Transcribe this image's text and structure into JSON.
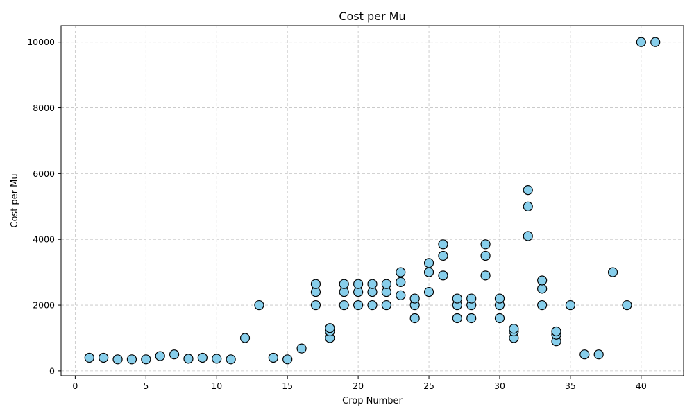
{
  "chart_data": {
    "type": "scatter",
    "title": "Cost per Mu",
    "xlabel": "Crop Number",
    "ylabel": "Cost per Mu",
    "xlim": [
      -1,
      43
    ],
    "ylim": [
      -150,
      10500
    ],
    "xticks": [
      0,
      5,
      10,
      15,
      20,
      25,
      30,
      35,
      40
    ],
    "yticks": [
      0,
      2000,
      4000,
      6000,
      8000,
      10000
    ],
    "grid": true,
    "marker_color": "#87ceeb",
    "marker_edge_color": "#000000",
    "points": [
      [
        1,
        400
      ],
      [
        2,
        400
      ],
      [
        3,
        350
      ],
      [
        4,
        350
      ],
      [
        5,
        350
      ],
      [
        6,
        450
      ],
      [
        7,
        500
      ],
      [
        8,
        370
      ],
      [
        9,
        400
      ],
      [
        10,
        370
      ],
      [
        11,
        350
      ],
      [
        12,
        1000
      ],
      [
        13,
        2000
      ],
      [
        14,
        400
      ],
      [
        15,
        350
      ],
      [
        16,
        680
      ],
      [
        17,
        2000
      ],
      [
        17,
        2400
      ],
      [
        17,
        2640
      ],
      [
        18,
        1000
      ],
      [
        18,
        1200
      ],
      [
        18,
        1300
      ],
      [
        19,
        2000
      ],
      [
        19,
        2400
      ],
      [
        19,
        2640
      ],
      [
        20,
        2000
      ],
      [
        20,
        2400
      ],
      [
        20,
        2640
      ],
      [
        21,
        2000
      ],
      [
        21,
        2400
      ],
      [
        21,
        2640
      ],
      [
        22,
        2000
      ],
      [
        22,
        2400
      ],
      [
        22,
        2640
      ],
      [
        23,
        2300
      ],
      [
        23,
        2700
      ],
      [
        23,
        3000
      ],
      [
        24,
        1600
      ],
      [
        24,
        2000
      ],
      [
        24,
        2200
      ],
      [
        25,
        2400
      ],
      [
        25,
        3000
      ],
      [
        25,
        3280
      ],
      [
        26,
        2900
      ],
      [
        26,
        3500
      ],
      [
        26,
        3850
      ],
      [
        27,
        1600
      ],
      [
        27,
        2000
      ],
      [
        27,
        2200
      ],
      [
        28,
        1600
      ],
      [
        28,
        2000
      ],
      [
        28,
        2200
      ],
      [
        29,
        2900
      ],
      [
        29,
        3500
      ],
      [
        29,
        3850
      ],
      [
        30,
        1600
      ],
      [
        30,
        2000
      ],
      [
        30,
        2200
      ],
      [
        31,
        1000
      ],
      [
        31,
        1200
      ],
      [
        31,
        1280
      ],
      [
        32,
        4100
      ],
      [
        32,
        5000
      ],
      [
        32,
        5500
      ],
      [
        33,
        2000
      ],
      [
        33,
        2500
      ],
      [
        33,
        2750
      ],
      [
        34,
        900
      ],
      [
        34,
        1100
      ],
      [
        34,
        1200
      ],
      [
        35,
        2000
      ],
      [
        36,
        500
      ],
      [
        37,
        500
      ],
      [
        38,
        3000
      ],
      [
        39,
        2000
      ],
      [
        40,
        10000
      ],
      [
        41,
        10000
      ]
    ]
  }
}
